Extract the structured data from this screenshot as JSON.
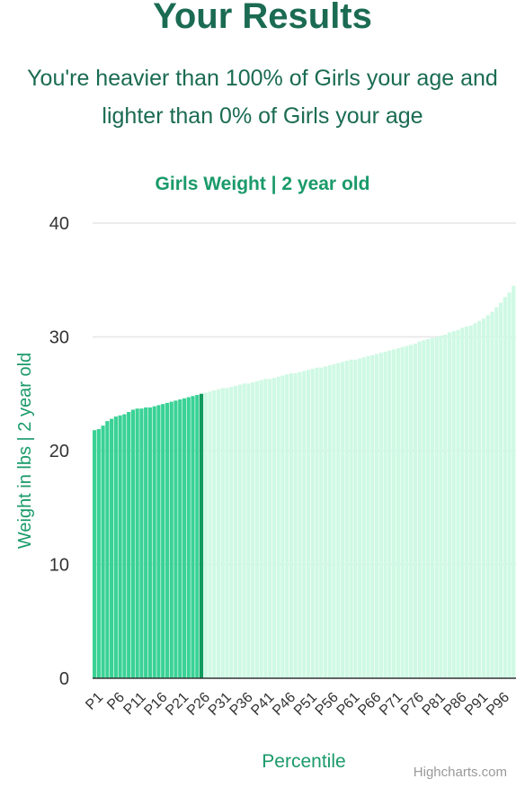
{
  "page": {
    "title": "Your Results",
    "subtitle": "You're heavier than 100% of Girls your age and lighter than 0% of Girls your age",
    "credits": "Highcharts.com"
  },
  "colors": {
    "title": "#1a6b52",
    "accent": "#1a9a6a",
    "bar_highlight": "#3ad296",
    "bar_current": "#0f9c5e",
    "bar_rest": "#cff9e4",
    "grid": "#e6e6e6",
    "axis_text": "#333333"
  },
  "chart_data": {
    "type": "bar",
    "title": "Girls Weight | 2 year old",
    "xlabel": "Percentile",
    "ylabel": "Weight in lbs | 2 year old",
    "ylim": [
      0,
      40
    ],
    "yticks": [
      0,
      10,
      20,
      30,
      40
    ],
    "categories": [
      "P1",
      "P2",
      "P3",
      "P4",
      "P5",
      "P6",
      "P7",
      "P8",
      "P9",
      "P10",
      "P11",
      "P12",
      "P13",
      "P14",
      "P15",
      "P16",
      "P17",
      "P18",
      "P19",
      "P20",
      "P21",
      "P22",
      "P23",
      "P24",
      "P25",
      "P26",
      "P27",
      "P28",
      "P29",
      "P30",
      "P31",
      "P32",
      "P33",
      "P34",
      "P35",
      "P36",
      "P37",
      "P38",
      "P39",
      "P40",
      "P41",
      "P42",
      "P43",
      "P44",
      "P45",
      "P46",
      "P47",
      "P48",
      "P49",
      "P50",
      "P51",
      "P52",
      "P53",
      "P54",
      "P55",
      "P56",
      "P57",
      "P58",
      "P59",
      "P60",
      "P61",
      "P62",
      "P63",
      "P64",
      "P65",
      "P66",
      "P67",
      "P68",
      "P69",
      "P70",
      "P71",
      "P72",
      "P73",
      "P74",
      "P75",
      "P76",
      "P77",
      "P78",
      "P79",
      "P80",
      "P81",
      "P82",
      "P83",
      "P84",
      "P85",
      "P86",
      "P87",
      "P88",
      "P89",
      "P90",
      "P91",
      "P92",
      "P93",
      "P94",
      "P95",
      "P96",
      "P97",
      "P98",
      "P99"
    ],
    "tick_labels": [
      "P1",
      "P6",
      "P11",
      "P16",
      "P21",
      "P26",
      "P31",
      "P36",
      "P41",
      "P46",
      "P51",
      "P56",
      "P61",
      "P66",
      "P71",
      "P76",
      "P81",
      "P86",
      "P91",
      "P96"
    ],
    "values": [
      21.8,
      21.9,
      22.2,
      22.6,
      22.8,
      23.0,
      23.1,
      23.2,
      23.4,
      23.6,
      23.7,
      23.7,
      23.8,
      23.8,
      23.9,
      24.0,
      24.1,
      24.2,
      24.3,
      24.4,
      24.5,
      24.6,
      24.7,
      24.8,
      24.9,
      25.0,
      25.1,
      25.2,
      25.3,
      25.4,
      25.5,
      25.5,
      25.6,
      25.7,
      25.8,
      25.9,
      25.9,
      26.0,
      26.1,
      26.2,
      26.3,
      26.3,
      26.4,
      26.5,
      26.6,
      26.7,
      26.8,
      26.8,
      26.9,
      27.0,
      27.1,
      27.2,
      27.3,
      27.3,
      27.4,
      27.5,
      27.6,
      27.7,
      27.8,
      27.9,
      28.0,
      28.0,
      28.1,
      28.2,
      28.3,
      28.4,
      28.5,
      28.6,
      28.7,
      28.8,
      28.9,
      29.0,
      29.1,
      29.2,
      29.3,
      29.4,
      29.6,
      29.7,
      29.8,
      29.9,
      30.0,
      30.1,
      30.2,
      30.4,
      30.5,
      30.6,
      30.8,
      30.9,
      31.0,
      31.2,
      31.4,
      31.6,
      31.9,
      32.2,
      32.6,
      33.0,
      33.5,
      33.9,
      34.5
    ],
    "highlight_upto_index": 25,
    "grid": true
  }
}
